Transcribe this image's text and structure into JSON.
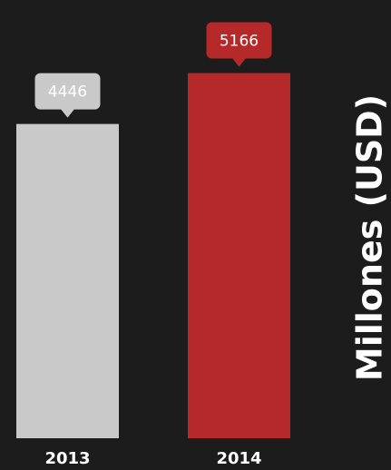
{
  "chart_data": {
    "type": "bar",
    "y_label": "Millones (USD)",
    "categories": [
      "2013",
      "2014"
    ],
    "values": [
      4446,
      5166
    ],
    "colors": [
      "#c9c9c9",
      "#b5292a"
    ],
    "ylim": [
      0,
      6200
    ]
  }
}
